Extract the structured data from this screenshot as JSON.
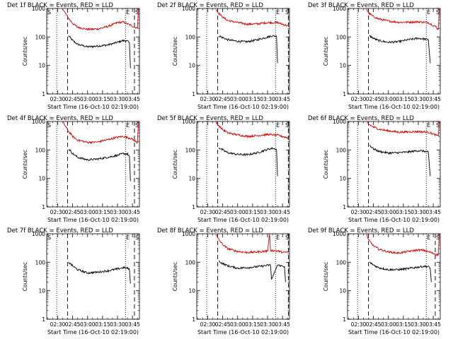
{
  "figure": {
    "xlabel": "Start Time (16-Oct-10 02:19:00)",
    "ylabel": "Counts/sec",
    "xtick_labels": [
      "02:30",
      "02:45",
      "03:00",
      "03:15",
      "03:30",
      "03:45"
    ],
    "ytick_labels": [
      "1",
      "10",
      "100",
      "1000"
    ],
    "marker_S": "S",
    "marker_E": "E",
    "colors": {
      "events": "#000000",
      "lld": "#d40000",
      "axes": "#000000",
      "background": "#ffffff"
    }
  },
  "chart_data": [
    {
      "type": "line",
      "title": "Det 1f BLACK = Events, RED = LLD",
      "ylim": [
        1,
        1000
      ],
      "xlim": [
        "02:19",
        "03:52"
      ],
      "yscale": "log",
      "markers": {
        "dotted": [
          "02:29",
          "03:38"
        ],
        "dashed": [
          "02:40",
          "03:47"
        ],
        "S_left": true,
        "E_at": "03:40",
        "S_right": true
      },
      "series": [
        {
          "name": "Events",
          "x": [
            "02:41",
            "02:45",
            "02:50",
            "03:00",
            "03:10",
            "03:20",
            "03:30",
            "03:36",
            "03:40",
            "03:42",
            "03:43"
          ],
          "values": [
            110,
            75,
            55,
            45,
            48,
            52,
            65,
            75,
            72,
            60,
            8
          ]
        },
        {
          "name": "LLD",
          "x": [
            "02:35",
            "02:38",
            "02:41",
            "02:45",
            "02:50",
            "03:00",
            "03:10",
            "03:20",
            "03:30",
            "03:36",
            "03:44",
            "03:50",
            "03:51"
          ],
          "values": [
            1000,
            650,
            450,
            300,
            220,
            185,
            190,
            230,
            320,
            330,
            250,
            200,
            1000
          ]
        }
      ]
    },
    {
      "type": "line",
      "title": "Det 2f BLACK = Events, RED = LLD",
      "ylim": [
        1,
        1000
      ],
      "xlim": [
        "02:19",
        "03:52"
      ],
      "yscale": "log",
      "markers": {
        "dotted": [
          "02:29",
          "03:38"
        ],
        "dashed": [
          "02:40",
          "03:51"
        ],
        "S_left": false,
        "E_at": "03:40",
        "S_right": true
      },
      "series": [
        {
          "name": "Events",
          "x": [
            "02:41",
            "02:45",
            "02:50",
            "03:00",
            "03:10",
            "03:20",
            "03:30",
            "03:35",
            "03:39",
            "03:40"
          ],
          "values": [
            110,
            95,
            80,
            70,
            68,
            80,
            100,
            110,
            105,
            12
          ]
        },
        {
          "name": "LLD",
          "x": [
            "02:38",
            "02:40",
            "02:45",
            "02:50",
            "03:00",
            "03:10",
            "03:20",
            "03:30",
            "03:40",
            "03:48",
            "03:51"
          ],
          "values": [
            1000,
            750,
            500,
            380,
            320,
            280,
            290,
            320,
            320,
            260,
            240
          ]
        }
      ]
    },
    {
      "type": "line",
      "title": "Det 3f BLACK = Events, RED = LLD",
      "ylim": [
        1,
        1000
      ],
      "xlim": [
        "02:19",
        "03:52"
      ],
      "yscale": "log",
      "markers": {
        "dotted": [
          "02:29",
          "03:38"
        ],
        "dashed": [
          "02:40"
        ],
        "S_left": false,
        "E_at": "03:40",
        "S_right": true
      },
      "series": [
        {
          "name": "Events",
          "x": [
            "02:41",
            "02:45",
            "02:50",
            "03:00",
            "03:10",
            "03:20",
            "03:30",
            "03:36",
            "03:40",
            "03:42"
          ],
          "values": [
            110,
            90,
            75,
            65,
            68,
            80,
            90,
            85,
            80,
            12
          ]
        },
        {
          "name": "LLD",
          "x": [
            "02:38",
            "02:40",
            "02:45",
            "02:50",
            "03:00",
            "03:10",
            "03:20",
            "03:30",
            "03:40",
            "03:48",
            "03:50",
            "03:51"
          ],
          "values": [
            1000,
            700,
            520,
            430,
            360,
            330,
            330,
            340,
            320,
            220,
            180,
            1000
          ]
        }
      ]
    },
    {
      "type": "line",
      "title": "Det 4f BLACK = Events, RED = LLD",
      "ylim": [
        1,
        1000
      ],
      "xlim": [
        "02:19",
        "03:52"
      ],
      "yscale": "log",
      "markers": {
        "dotted": [
          "02:29",
          "03:38"
        ],
        "dashed": [
          "02:40",
          "03:47"
        ],
        "S_left": true,
        "E_at": "03:40",
        "S_right": true
      },
      "series": [
        {
          "name": "Events",
          "x": [
            "02:41",
            "02:45",
            "02:50",
            "03:00",
            "03:10",
            "03:20",
            "03:30",
            "03:36",
            "03:40",
            "03:42",
            "03:43"
          ],
          "values": [
            110,
            75,
            55,
            45,
            48,
            55,
            65,
            75,
            72,
            60,
            8
          ]
        },
        {
          "name": "LLD",
          "x": [
            "02:35",
            "02:38",
            "02:41",
            "02:45",
            "02:50",
            "03:00",
            "03:10",
            "03:20",
            "03:30",
            "03:36",
            "03:44",
            "03:50",
            "03:51"
          ],
          "values": [
            1000,
            650,
            450,
            300,
            220,
            185,
            190,
            230,
            280,
            300,
            250,
            180,
            1000
          ]
        }
      ]
    },
    {
      "type": "line",
      "title": "Det 5f BLACK = Events, RED = LLD",
      "ylim": [
        1,
        1000
      ],
      "xlim": [
        "02:19",
        "03:52"
      ],
      "yscale": "log",
      "markers": {
        "dotted": [
          "02:29",
          "03:38"
        ],
        "dashed": [
          "02:40",
          "03:51"
        ],
        "S_left": false,
        "E_at": "03:40",
        "S_right": true
      },
      "series": [
        {
          "name": "Events",
          "x": [
            "02:41",
            "02:45",
            "02:50",
            "03:00",
            "03:10",
            "03:20",
            "03:30",
            "03:35",
            "03:39",
            "03:40"
          ],
          "values": [
            120,
            100,
            80,
            70,
            68,
            80,
            105,
            115,
            105,
            12
          ]
        },
        {
          "name": "LLD",
          "x": [
            "02:38",
            "02:40",
            "02:45",
            "02:50",
            "03:00",
            "03:10",
            "03:20",
            "03:30",
            "03:40",
            "03:48",
            "03:51"
          ],
          "values": [
            1000,
            780,
            520,
            400,
            340,
            300,
            320,
            350,
            330,
            280,
            260
          ]
        }
      ]
    },
    {
      "type": "line",
      "title": "Det 6f BLACK = Events, RED = LLD",
      "ylim": [
        1,
        1000
      ],
      "xlim": [
        "02:19",
        "03:52"
      ],
      "yscale": "log",
      "markers": {
        "dotted": [
          "02:29",
          "03:38"
        ],
        "dashed": [
          "02:40"
        ],
        "S_left": false,
        "E_at": "03:40",
        "S_right": true
      },
      "series": [
        {
          "name": "Events",
          "x": [
            "02:41",
            "02:45",
            "02:50",
            "03:00",
            "03:10",
            "03:20",
            "03:30",
            "03:36",
            "03:40",
            "03:42"
          ],
          "values": [
            150,
            110,
            90,
            78,
            80,
            85,
            95,
            90,
            85,
            12
          ]
        },
        {
          "name": "LLD",
          "x": [
            "02:38",
            "02:40",
            "02:45",
            "02:50",
            "03:00",
            "03:10",
            "03:20",
            "03:30",
            "03:40",
            "03:48",
            "03:50",
            "03:51"
          ],
          "values": [
            1000,
            800,
            640,
            540,
            470,
            420,
            430,
            440,
            420,
            330,
            300,
            1000
          ]
        }
      ]
    },
    {
      "type": "line",
      "title": "Det 7f BLACK = Events, RED = LLD",
      "ylim": [
        1,
        1000
      ],
      "xlim": [
        "02:19",
        "03:52"
      ],
      "yscale": "log",
      "markers": {
        "dotted": [
          "02:29",
          "03:38"
        ],
        "dashed": [
          "02:40",
          "03:47"
        ],
        "S_left": true,
        "E_at": "03:40",
        "S_right": true
      },
      "series": [
        {
          "name": "Events",
          "x": [
            "02:41",
            "02:45",
            "02:50",
            "03:00",
            "03:10",
            "03:20",
            "03:30",
            "03:36",
            "03:40",
            "03:42",
            "03:43"
          ],
          "values": [
            100,
            75,
            55,
            42,
            45,
            50,
            58,
            65,
            62,
            55,
            18
          ]
        }
      ]
    },
    {
      "type": "line",
      "title": "Det 8f BLACK = Events, RED = LLD",
      "ylim": [
        1,
        1000
      ],
      "xlim": [
        "02:19",
        "03:52"
      ],
      "yscale": "log",
      "markers": {
        "dotted": [
          "02:29",
          "03:38"
        ],
        "dashed": [
          "02:40",
          "03:51"
        ],
        "S_left": false,
        "E_at": "03:40",
        "S_right": true
      },
      "series": [
        {
          "name": "Events",
          "x": [
            "02:41",
            "02:45",
            "02:50",
            "03:00",
            "03:10",
            "03:20",
            "03:30",
            "03:33",
            "03:34",
            "03:40",
            "03:47",
            "03:48"
          ],
          "values": [
            110,
            90,
            75,
            62,
            65,
            70,
            78,
            80,
            25,
            80,
            70,
            20
          ]
        },
        {
          "name": "LLD",
          "x": [
            "02:38",
            "02:40",
            "02:45",
            "02:50",
            "03:00",
            "03:10",
            "03:20",
            "03:30",
            "03:32",
            "03:33",
            "03:40",
            "03:46",
            "03:51"
          ],
          "values": [
            1000,
            700,
            420,
            300,
            240,
            220,
            230,
            250,
            1000,
            260,
            250,
            220,
            230
          ]
        }
      ]
    },
    {
      "type": "line",
      "title": "Det 9f BLACK = Events, RED = LLD",
      "ylim": [
        1,
        1000
      ],
      "xlim": [
        "02:19",
        "03:52"
      ],
      "yscale": "log",
      "markers": {
        "dotted": [
          "02:29",
          "03:38"
        ],
        "dashed": [
          "02:40",
          "03:47"
        ],
        "S_left": false,
        "E_at": "03:40",
        "S_right": true
      },
      "series": [
        {
          "name": "Events",
          "x": [
            "02:41",
            "02:45",
            "02:50",
            "03:00",
            "03:10",
            "03:20",
            "03:30",
            "03:36",
            "03:40",
            "03:42",
            "03:43"
          ],
          "values": [
            100,
            80,
            65,
            55,
            55,
            60,
            68,
            72,
            70,
            60,
            20
          ]
        },
        {
          "name": "LLD",
          "x": [
            "02:38",
            "02:40",
            "02:45",
            "02:50",
            "03:00",
            "03:10",
            "03:20",
            "03:30",
            "03:36",
            "03:44",
            "03:50",
            "03:51"
          ],
          "values": [
            1000,
            600,
            380,
            290,
            230,
            210,
            240,
            270,
            260,
            210,
            180,
            1000
          ]
        }
      ]
    }
  ]
}
